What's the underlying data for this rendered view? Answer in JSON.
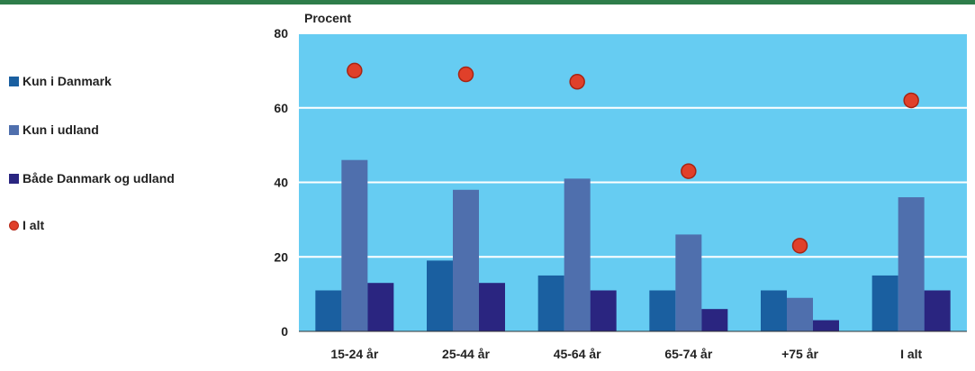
{
  "chart_data": {
    "type": "bar",
    "ylabel": "Procent",
    "ylim": [
      0,
      80
    ],
    "yticks": [
      0,
      20,
      40,
      60,
      80
    ],
    "grid": true,
    "legend_position": "left",
    "categories": [
      "15-24 år",
      "25-44 år",
      "45-64 år",
      "65-74 år",
      "+75 år",
      "I alt"
    ],
    "series": [
      {
        "name": "Kun i Danmark",
        "kind": "bar",
        "color": "#1a5fa0",
        "values": [
          11,
          19,
          15,
          11,
          11,
          15
        ]
      },
      {
        "name": "Kun i udland",
        "kind": "bar",
        "color": "#4f6fad",
        "values": [
          46,
          38,
          41,
          26,
          9,
          36
        ]
      },
      {
        "name": "Både Danmark og udland",
        "kind": "bar",
        "color": "#2a2580",
        "values": [
          13,
          13,
          11,
          6,
          3,
          11
        ]
      },
      {
        "name": "I alt",
        "kind": "point",
        "color": "#e0402a",
        "values": [
          70,
          69,
          67,
          43,
          23,
          62
        ]
      }
    ],
    "plot_background": "#66ccf2",
    "gridline_color": "#ffffff"
  }
}
